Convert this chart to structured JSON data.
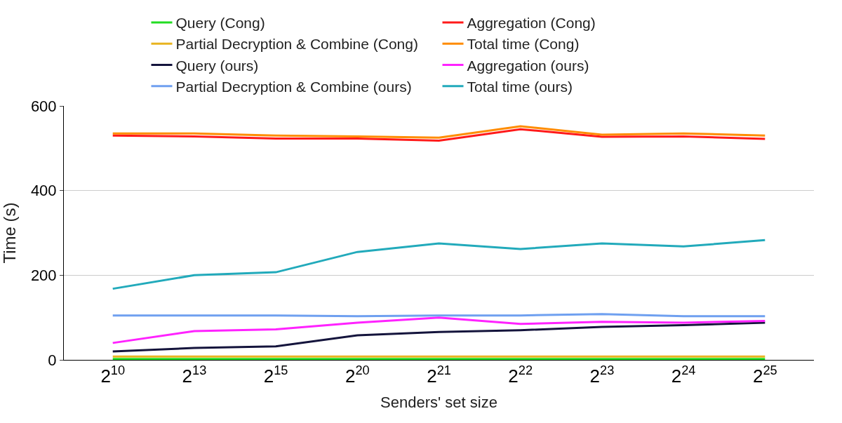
{
  "chart_data": {
    "type": "line",
    "xlabel": "Senders' set size",
    "ylabel": "Time (s)",
    "categories": [
      "2$^{10}$",
      "2$^{13}$",
      "2$^{15}$",
      "2$^{20}$",
      "2$^{21}$",
      "2$^{22}$",
      "2$^{23}$",
      "2$^{24}$",
      "2$^{25}$"
    ],
    "series": [
      {
        "name": "Query (Cong)",
        "color": "#22dd22",
        "values": [
          2,
          2,
          2,
          2,
          2,
          2,
          2,
          2,
          2
        ]
      },
      {
        "name": "Aggregation (Cong)",
        "color": "#ff1a1a",
        "values": [
          530,
          528,
          523,
          523,
          518,
          545,
          527,
          528,
          522
        ]
      },
      {
        "name": "Partial Decryption & Combine (Cong)",
        "color": "#e8b420",
        "values": [
          8,
          8,
          8,
          8,
          8,
          8,
          8,
          8,
          8
        ]
      },
      {
        "name": "Total time (Cong)",
        "color": "#ff8c00",
        "values": [
          535,
          535,
          530,
          528,
          525,
          552,
          532,
          535,
          530
        ]
      },
      {
        "name": "Query (ours)",
        "color": "#14143c",
        "values": [
          20,
          28,
          32,
          58,
          66,
          70,
          78,
          82,
          88
        ]
      },
      {
        "name": "Aggregation (ours)",
        "color": "#ff22ff",
        "values": [
          40,
          68,
          72,
          88,
          100,
          85,
          90,
          88,
          92
        ]
      },
      {
        "name": "Partial Decryption & Combine (ours)",
        "color": "#6fa0f0",
        "values": [
          105,
          105,
          105,
          103,
          105,
          105,
          108,
          103,
          103
        ]
      },
      {
        "name": "Total time (ours)",
        "color": "#22aabb",
        "values": [
          168,
          200,
          207,
          255,
          275,
          262,
          275,
          268,
          283
        ]
      }
    ],
    "ylim": [
      0,
      600
    ],
    "yticks": [
      0,
      200,
      400,
      600
    ],
    "grid": "y",
    "legend": "top",
    "marker": "none",
    "line_style": "solid"
  }
}
